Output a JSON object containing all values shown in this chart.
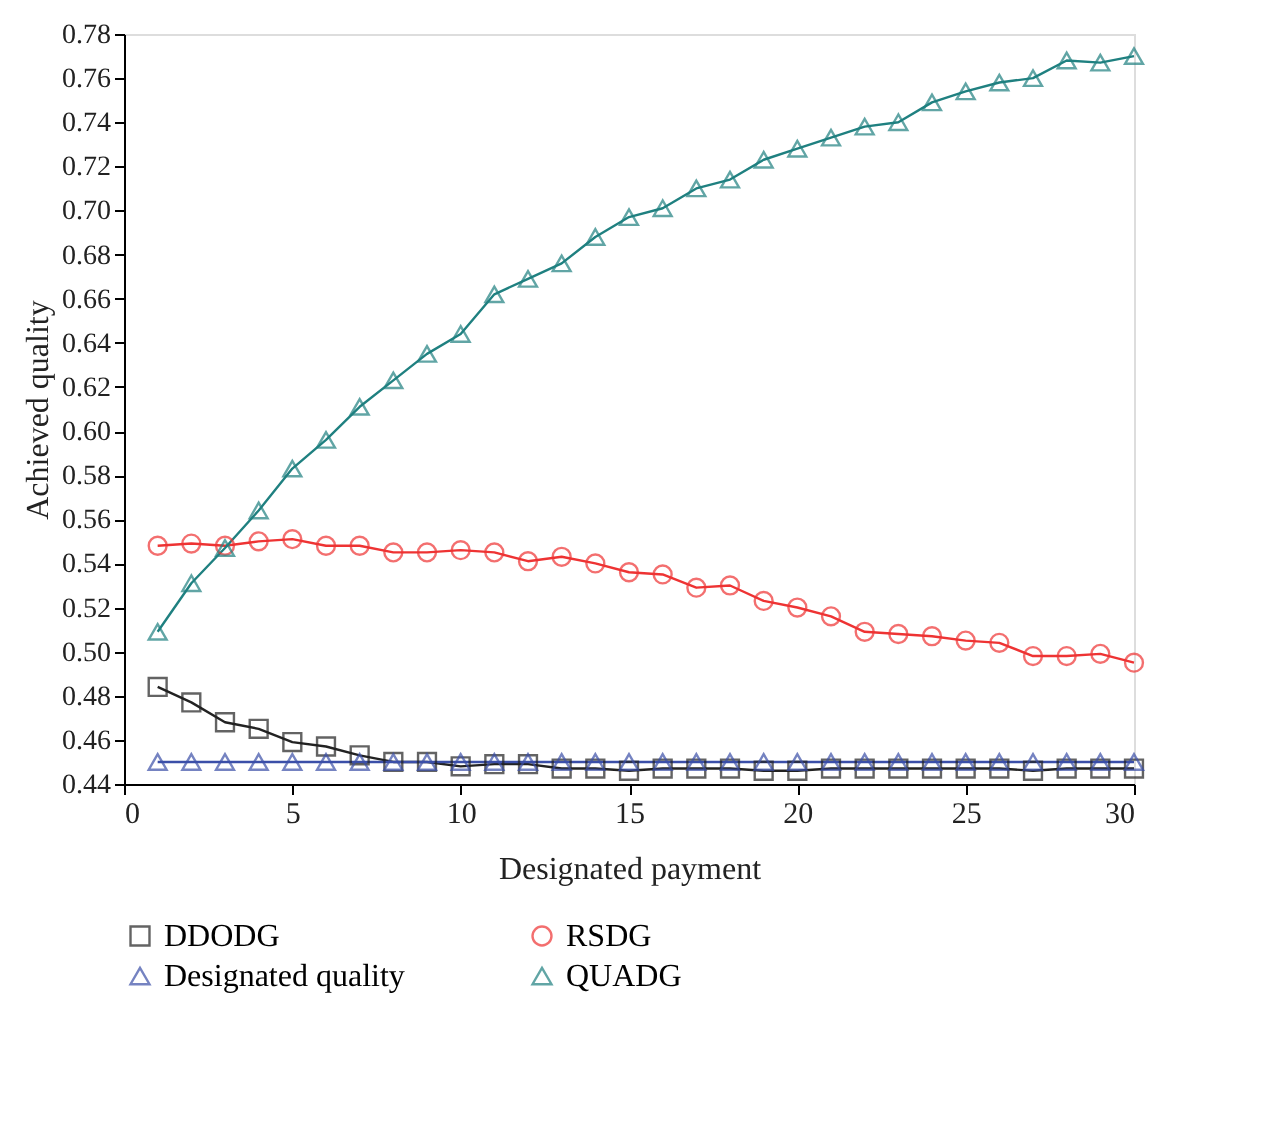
{
  "chart_data": {
    "type": "line",
    "xlabel": "Designated payment",
    "ylabel": "Achieved quality",
    "x": [
      1,
      2,
      3,
      4,
      5,
      6,
      7,
      8,
      9,
      10,
      11,
      12,
      13,
      14,
      15,
      16,
      17,
      18,
      19,
      20,
      21,
      22,
      23,
      24,
      25,
      26,
      27,
      28,
      29,
      30
    ],
    "xlim": [
      0,
      30
    ],
    "xticks": [
      0,
      5,
      10,
      15,
      20,
      25,
      30
    ],
    "ylim": [
      0.44,
      0.78
    ],
    "yticks": [
      0.44,
      0.46,
      0.48,
      {
        "value": 0.5,
        "label": "0.50"
      },
      0.52,
      0.54,
      0.56,
      0.58,
      {
        "value": 0.6,
        "label": "0.60"
      },
      0.62,
      0.64,
      0.66,
      0.68,
      {
        "value": 0.7,
        "label": "0.70"
      },
      0.72,
      0.74,
      0.76,
      0.78
    ],
    "grid": false,
    "legend": "bottom",
    "line_style": "solid",
    "series": [
      {
        "name": "DDODG",
        "color": "#222222",
        "marker": "square",
        "values": [
          0.484,
          0.477,
          0.468,
          0.465,
          0.459,
          0.457,
          0.453,
          0.45,
          0.45,
          0.448,
          0.449,
          0.449,
          0.447,
          0.447,
          0.446,
          0.447,
          0.447,
          0.447,
          0.446,
          0.446,
          0.447,
          0.447,
          0.447,
          0.447,
          0.447,
          0.447,
          0.446,
          0.447,
          0.447,
          0.447
        ]
      },
      {
        "name": "RSDG",
        "color": "#ee3333",
        "marker": "circle",
        "values": [
          0.548,
          0.549,
          0.548,
          0.55,
          0.551,
          0.548,
          0.548,
          0.545,
          0.545,
          0.546,
          0.545,
          0.541,
          0.543,
          0.54,
          0.536,
          0.535,
          0.529,
          0.53,
          0.523,
          0.52,
          0.516,
          0.509,
          0.508,
          0.507,
          0.505,
          0.504,
          0.498,
          0.498,
          0.499,
          0.495
        ]
      },
      {
        "name": "Designated quality",
        "color": "#3b4fa8",
        "marker": "triangle",
        "values": [
          0.45,
          0.45,
          0.45,
          0.45,
          0.45,
          0.45,
          0.45,
          0.45,
          0.45,
          0.45,
          0.45,
          0.45,
          0.45,
          0.45,
          0.45,
          0.45,
          0.45,
          0.45,
          0.45,
          0.45,
          0.45,
          0.45,
          0.45,
          0.45,
          0.45,
          0.45,
          0.45,
          0.45,
          0.45,
          0.45
        ]
      },
      {
        "name": "QUADG",
        "color": "#1f8080",
        "marker": "triangle",
        "values": [
          0.509,
          0.531,
          0.547,
          0.564,
          0.583,
          0.596,
          0.611,
          0.623,
          0.635,
          0.644,
          0.662,
          0.669,
          0.676,
          0.688,
          0.697,
          0.701,
          0.71,
          0.714,
          0.723,
          0.728,
          0.733,
          0.738,
          0.74,
          0.749,
          0.754,
          0.758,
          0.76,
          0.768,
          0.767,
          0.77
        ]
      }
    ]
  }
}
